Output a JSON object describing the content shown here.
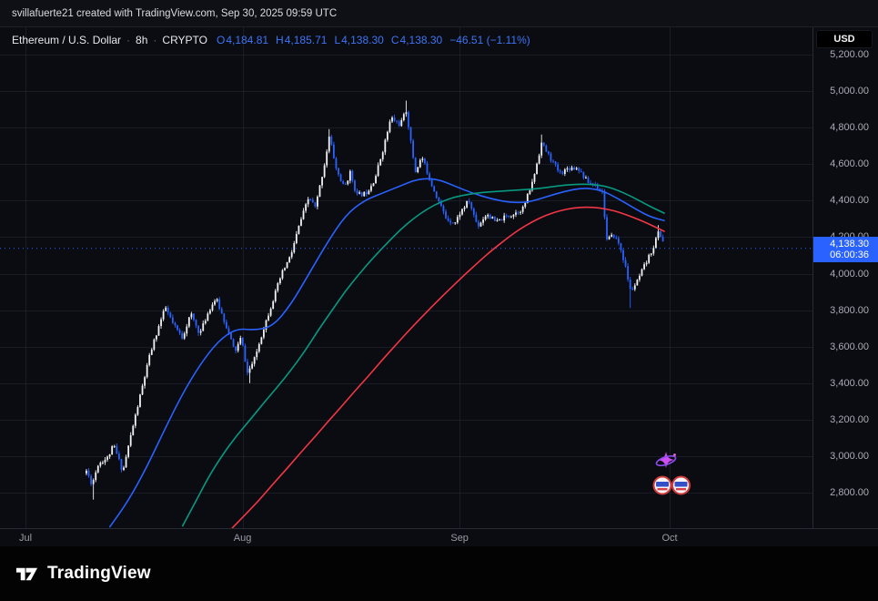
{
  "attribution": "svillafuerte21 created with TradingView.com, Sep 30, 2025 09:59 UTC",
  "toolbar": {
    "currency_button": "USD"
  },
  "legend": {
    "symbol": "Ethereum / U.S. Dollar",
    "separator": "·",
    "interval": "8h",
    "market": "CRYPTO",
    "o_label": "O",
    "o": "4,184.81",
    "h_label": "H",
    "h": "4,185.71",
    "l_label": "L",
    "l": "4,138.30",
    "c_label": "C",
    "c": "4,138.30",
    "change": "−46.51 (−1.11%)"
  },
  "price_badge": {
    "price": "4,138.30",
    "countdown": "06:00:36"
  },
  "footer": {
    "logo_text": "TradingView"
  },
  "chart_data": {
    "type": "candlestick",
    "title": "Ethereum / U.S. Dollar",
    "interval": "8h",
    "market": "CRYPTO",
    "current": {
      "open": 4184.81,
      "high": 4185.71,
      "low": 4138.3,
      "close": 4138.3,
      "change": -46.51,
      "change_pct": -1.11
    },
    "last_price": 4138.3,
    "y_axis": {
      "min": 2605,
      "max": 5350,
      "tick_step": 200,
      "ticks": [
        {
          "value": 5200,
          "label": "5,200.00"
        },
        {
          "value": 5000,
          "label": "5,000.00"
        },
        {
          "value": 4800,
          "label": "4,800.00"
        },
        {
          "value": 4600,
          "label": "4,600.00"
        },
        {
          "value": 4400,
          "label": "4,400.00"
        },
        {
          "value": 4200,
          "label": "4,200.00"
        },
        {
          "value": 4000,
          "label": "4,000.00"
        },
        {
          "value": 3800,
          "label": "3,800.00"
        },
        {
          "value": 3600,
          "label": "3,600.00"
        },
        {
          "value": 3400,
          "label": "3,400.00"
        },
        {
          "value": 3200,
          "label": "3,200.00"
        },
        {
          "value": 3000,
          "label": "3,000.00"
        },
        {
          "value": 2800,
          "label": "2,800.00"
        }
      ]
    },
    "x_axis": {
      "months": [
        {
          "label": "Jul",
          "day": 0
        },
        {
          "label": "Aug",
          "day": 31
        },
        {
          "label": "Sep",
          "day": 62
        },
        {
          "label": "Oct",
          "day": 92
        }
      ]
    },
    "candles": {
      "start_day": 8.7,
      "end_day": 91.33,
      "per_day": 3,
      "close_anchors": [
        [
          8.7,
          2920
        ],
        [
          9.5,
          2845
        ],
        [
          10.4,
          2960
        ],
        [
          11.7,
          2990
        ],
        [
          12.6,
          3060
        ],
        [
          13.9,
          2915
        ],
        [
          15.2,
          3140
        ],
        [
          16.5,
          3350
        ],
        [
          17.8,
          3560
        ],
        [
          19.1,
          3720
        ],
        [
          20.0,
          3815
        ],
        [
          21.1,
          3720
        ],
        [
          22.4,
          3650
        ],
        [
          23.6,
          3780
        ],
        [
          24.9,
          3670
        ],
        [
          26.2,
          3800
        ],
        [
          27.2,
          3865
        ],
        [
          28.8,
          3700
        ],
        [
          29.9,
          3570
        ],
        [
          30.8,
          3650
        ],
        [
          31.7,
          3455
        ],
        [
          32.7,
          3530
        ],
        [
          34.0,
          3700
        ],
        [
          35.3,
          3850
        ],
        [
          36.6,
          4000
        ],
        [
          37.9,
          4100
        ],
        [
          39.2,
          4280
        ],
        [
          40.5,
          4420
        ],
        [
          41.4,
          4360
        ],
        [
          42.7,
          4600
        ],
        [
          43.4,
          4755
        ],
        [
          44.4,
          4570
        ],
        [
          45.5,
          4470
        ],
        [
          46.4,
          4555
        ],
        [
          47.3,
          4430
        ],
        [
          48.6,
          4440
        ],
        [
          49.9,
          4520
        ],
        [
          51.2,
          4700
        ],
        [
          52.2,
          4855
        ],
        [
          53.5,
          4815
        ],
        [
          54.4,
          4895
        ],
        [
          55.1,
          4700
        ],
        [
          55.7,
          4560
        ],
        [
          56.6,
          4640
        ],
        [
          57.9,
          4500
        ],
        [
          59.2,
          4380
        ],
        [
          60.1,
          4300
        ],
        [
          61.4,
          4280
        ],
        [
          62.0,
          4330
        ],
        [
          63.3,
          4400
        ],
        [
          64.6,
          4260
        ],
        [
          65.9,
          4330
        ],
        [
          67.2,
          4280
        ],
        [
          68.5,
          4310
        ],
        [
          69.8,
          4330
        ],
        [
          71.1,
          4360
        ],
        [
          72.4,
          4500
        ],
        [
          73.7,
          4715
        ],
        [
          75.0,
          4630
        ],
        [
          76.3,
          4550
        ],
        [
          77.6,
          4580
        ],
        [
          78.9,
          4580
        ],
        [
          80.2,
          4505
        ],
        [
          81.5,
          4480
        ],
        [
          82.4,
          4450
        ],
        [
          83.0,
          4185
        ],
        [
          84.1,
          4210
        ],
        [
          84.9,
          4150
        ],
        [
          85.6,
          4050
        ],
        [
          86.4,
          3905
        ],
        [
          87.3,
          3950
        ],
        [
          88.0,
          4010
        ],
        [
          88.9,
          4080
        ],
        [
          89.7,
          4150
        ],
        [
          90.4,
          4230
        ],
        [
          91.0,
          4185
        ],
        [
          91.33,
          4138.3
        ]
      ],
      "wick_lows": [
        [
          9.6,
          2762
        ],
        [
          31.9,
          3400
        ],
        [
          86.5,
          3812
        ]
      ],
      "wick_highs": [
        [
          43.4,
          4792
        ],
        [
          54.4,
          4948
        ],
        [
          73.7,
          4762
        ],
        [
          90.4,
          4266
        ]
      ]
    },
    "moving_averages": [
      {
        "name": "ma-fast",
        "color": "#2962ff",
        "points": [
          [
            12.0,
            2610
          ],
          [
            14.6,
            2750
          ],
          [
            17.2,
            2930
          ],
          [
            19.8,
            3140
          ],
          [
            22.4,
            3340
          ],
          [
            24.9,
            3500
          ],
          [
            27.5,
            3630
          ],
          [
            30.1,
            3700
          ],
          [
            32.7,
            3690
          ],
          [
            35.3,
            3710
          ],
          [
            37.9,
            3830
          ],
          [
            40.5,
            4000
          ],
          [
            43.1,
            4170
          ],
          [
            45.7,
            4320
          ],
          [
            48.3,
            4400
          ],
          [
            50.9,
            4440
          ],
          [
            53.5,
            4480
          ],
          [
            56.1,
            4520
          ],
          [
            58.7,
            4520
          ],
          [
            61.3,
            4480
          ],
          [
            63.9,
            4440
          ],
          [
            66.5,
            4410
          ],
          [
            69.1,
            4390
          ],
          [
            71.7,
            4390
          ],
          [
            74.3,
            4420
          ],
          [
            76.9,
            4450
          ],
          [
            79.5,
            4470
          ],
          [
            82.1,
            4460
          ],
          [
            84.7,
            4410
          ],
          [
            87.3,
            4350
          ],
          [
            89.3,
            4310
          ],
          [
            91.3,
            4290
          ]
        ]
      },
      {
        "name": "ma-mid",
        "color": "#089981",
        "points": [
          [
            22.4,
            2615
          ],
          [
            24.3,
            2750
          ],
          [
            26.2,
            2890
          ],
          [
            28.2,
            3010
          ],
          [
            30.1,
            3110
          ],
          [
            32.1,
            3200
          ],
          [
            34.0,
            3290
          ],
          [
            36.0,
            3380
          ],
          [
            37.9,
            3470
          ],
          [
            39.9,
            3575
          ],
          [
            41.8,
            3690
          ],
          [
            43.8,
            3800
          ],
          [
            45.7,
            3905
          ],
          [
            47.7,
            4000
          ],
          [
            49.6,
            4085
          ],
          [
            51.6,
            4165
          ],
          [
            53.5,
            4240
          ],
          [
            55.5,
            4305
          ],
          [
            57.4,
            4355
          ],
          [
            59.4,
            4395
          ],
          [
            61.3,
            4420
          ],
          [
            63.3,
            4435
          ],
          [
            65.2,
            4445
          ],
          [
            67.2,
            4450
          ],
          [
            69.1,
            4455
          ],
          [
            71.1,
            4460
          ],
          [
            73.0,
            4465
          ],
          [
            75.0,
            4475
          ],
          [
            76.9,
            4485
          ],
          [
            78.9,
            4490
          ],
          [
            80.8,
            4490
          ],
          [
            82.8,
            4480
          ],
          [
            84.7,
            4455
          ],
          [
            86.7,
            4420
          ],
          [
            88.6,
            4380
          ],
          [
            90.2,
            4350
          ],
          [
            91.3,
            4330
          ]
        ]
      },
      {
        "name": "ma-slow",
        "color": "#f23645",
        "points": [
          [
            29.5,
            2605
          ],
          [
            31.4,
            2680
          ],
          [
            33.4,
            2760
          ],
          [
            35.3,
            2845
          ],
          [
            37.3,
            2930
          ],
          [
            39.2,
            3015
          ],
          [
            41.2,
            3100
          ],
          [
            43.1,
            3185
          ],
          [
            45.1,
            3270
          ],
          [
            47.0,
            3355
          ],
          [
            49.0,
            3440
          ],
          [
            50.9,
            3525
          ],
          [
            52.9,
            3610
          ],
          [
            54.8,
            3690
          ],
          [
            56.8,
            3770
          ],
          [
            58.7,
            3845
          ],
          [
            60.7,
            3920
          ],
          [
            62.6,
            3990
          ],
          [
            64.6,
            4060
          ],
          [
            66.5,
            4125
          ],
          [
            68.5,
            4185
          ],
          [
            70.4,
            4240
          ],
          [
            72.4,
            4285
          ],
          [
            74.3,
            4320
          ],
          [
            76.3,
            4345
          ],
          [
            78.2,
            4360
          ],
          [
            80.2,
            4365
          ],
          [
            82.1,
            4360
          ],
          [
            84.1,
            4345
          ],
          [
            86.0,
            4320
          ],
          [
            88.0,
            4290
          ],
          [
            89.7,
            4260
          ],
          [
            91.3,
            4230
          ]
        ]
      }
    ],
    "colors": {
      "up": "#f2f3f5",
      "down": "#2962ff",
      "ma_fast": "#2962ff",
      "ma_mid": "#089981",
      "ma_slow": "#f23645",
      "grid": "rgba(42,48,62,0.45)",
      "badge_bg": "#2962ff",
      "dotted_line": "#2962ff",
      "background": "#0b0c11"
    }
  }
}
